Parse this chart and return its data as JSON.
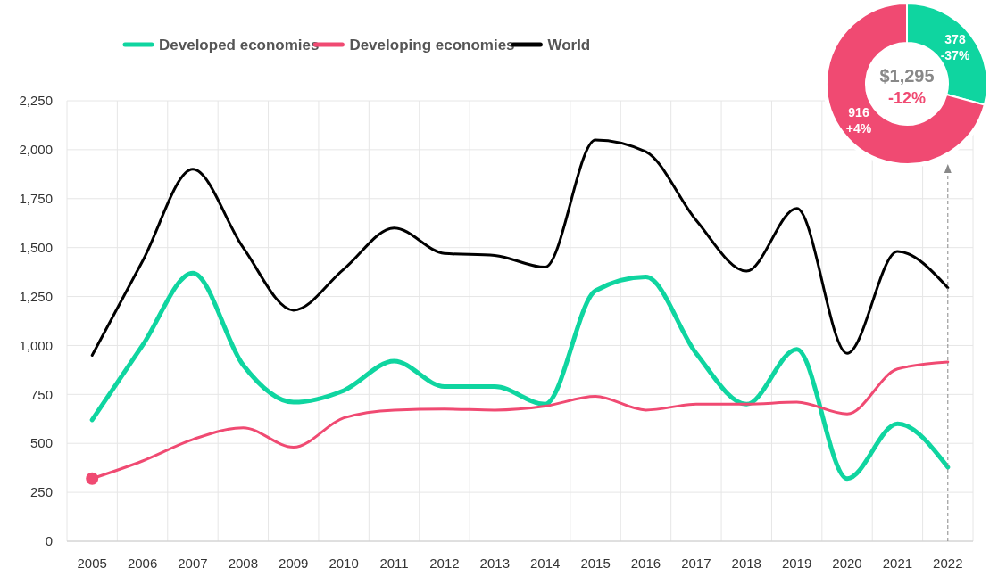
{
  "chart_data": [
    {
      "type": "line",
      "categories": [
        "2005",
        "2006",
        "2007",
        "2008",
        "2009",
        "2010",
        "2011",
        "2012",
        "2013",
        "2014",
        "2015",
        "2016",
        "2017",
        "2018",
        "2019",
        "2020",
        "2021",
        "2022"
      ],
      "series": [
        {
          "name": "Developed economies",
          "color": "#0fd5a0",
          "values": [
            620,
            1000,
            1370,
            900,
            710,
            770,
            920,
            790,
            790,
            700,
            1280,
            1350,
            960,
            700,
            980,
            320,
            600,
            378
          ]
        },
        {
          "name": "Developing economies",
          "color": "#f04a72",
          "values": [
            320,
            410,
            520,
            580,
            480,
            630,
            670,
            675,
            670,
            690,
            740,
            670,
            700,
            700,
            710,
            650,
            880,
            916
          ]
        },
        {
          "name": "World",
          "color": "#000000",
          "values": [
            950,
            1430,
            1900,
            1500,
            1180,
            1390,
            1600,
            1470,
            1460,
            1400,
            2050,
            1990,
            1640,
            1380,
            1700,
            960,
            1480,
            1295
          ]
        },
        {
          "type": "scatter",
          "color": "#f04a72",
          "values": [
            320,
            null,
            null,
            null,
            null,
            null,
            null,
            null,
            null,
            null,
            null,
            null,
            null,
            null,
            null,
            null,
            null,
            null
          ]
        }
      ],
      "ylim": [
        0,
        2250
      ],
      "yticks": [
        0,
        {
          "value": 250,
          "label": "250"
        },
        {
          "value": 500,
          "label": "500"
        },
        {
          "value": 750,
          "label": "750"
        },
        {
          "value": 1000,
          "label": "1,000"
        },
        {
          "value": 1250,
          "label": "1,250"
        },
        {
          "value": 1500,
          "label": "1,500"
        },
        {
          "value": 1750,
          "label": "1,750"
        },
        {
          "value": 2000,
          "label": "2,000"
        },
        {
          "value": 2250,
          "label": "2,250"
        }
      ],
      "grid": true,
      "legend": "top",
      "ref_lines": [
        {
          "axis": "x",
          "value": "2022",
          "color": "#888888",
          "line_style": "dashed"
        }
      ]
    },
    {
      "type": "donut",
      "title": "$1,295",
      "subtitle": "-12%",
      "categories": [
        null,
        null
      ],
      "values": [
        378,
        916
      ],
      "colors": [
        "#0fd5a0",
        "#f04a72"
      ],
      "value_labels": [
        "378 -37%",
        "916 +4%"
      ]
    }
  ]
}
